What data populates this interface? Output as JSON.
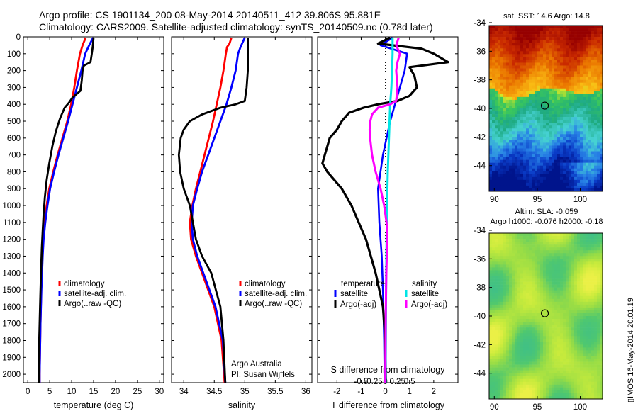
{
  "header": {
    "line1": "Argo profile: CS 1901134_200 08-May-2014 20140511_412 39.806S 95.881E",
    "line2": "Climatology: CARS2009. Satellite-adjusted climatology: synTS_20140509.nc (0.78d later)"
  },
  "side_stamp": "▯IMOS 16-May-2014 20:01:19",
  "colors": {
    "climatology": "#ff0000",
    "satellite": "#0000ff",
    "argo": "#000000",
    "sat_s": "#00e5e5",
    "argo_s": "#ff00ff"
  },
  "chart_data": [
    {
      "id": "temperature",
      "type": "line",
      "xlabel": "temperature (deg C)",
      "xlim": [
        -1,
        31
      ],
      "ylim": [
        2050,
        0
      ],
      "y_reversed": true,
      "xticks": [
        0,
        5,
        10,
        15,
        20,
        25,
        30
      ],
      "yticks": [
        0,
        100,
        200,
        300,
        400,
        500,
        600,
        700,
        800,
        900,
        1000,
        1100,
        1200,
        1300,
        1400,
        1500,
        1600,
        1700,
        1800,
        1900,
        2000
      ],
      "legend": [
        "climatology",
        "satellite-adj. clim.",
        "Argo(..raw -QC)"
      ],
      "series": [
        {
          "name": "climatology",
          "color": "#ff0000",
          "depth": [
            5,
            50,
            100,
            200,
            300,
            400,
            500,
            600,
            700,
            800,
            900,
            1000,
            1100,
            1200,
            1300,
            1500,
            1700,
            2000,
            2050
          ],
          "x": [
            13.2,
            12.5,
            11.9,
            11.2,
            10.6,
            9.9,
            9.0,
            7.9,
            6.8,
            5.8,
            4.9,
            4.3,
            3.8,
            3.5,
            3.3,
            3.05,
            2.9,
            2.7,
            2.7
          ]
        },
        {
          "name": "satellite-adj. clim.",
          "color": "#0000ff",
          "depth": [
            5,
            50,
            100,
            200,
            300,
            400,
            500,
            600,
            700,
            800,
            900,
            1000,
            1100,
            1200,
            1300,
            1500,
            1700,
            2000,
            2050
          ],
          "x": [
            14.9,
            14.0,
            13.1,
            12.2,
            11.2,
            10.2,
            9.2,
            8.1,
            7.0,
            6.0,
            5.1,
            4.5,
            4.0,
            3.6,
            3.4,
            3.1,
            2.9,
            2.7,
            2.7
          ]
        },
        {
          "name": "Argo(..raw -QC)",
          "color": "#000000",
          "depth": [
            5,
            60,
            100,
            150,
            170,
            200,
            260,
            320,
            360,
            390,
            420,
            480,
            560,
            650,
            750,
            850,
            950,
            1050,
            1150,
            1250,
            1400,
            1600,
            1800,
            2050
          ],
          "x": [
            15.0,
            14.8,
            14.6,
            14.3,
            12.8,
            12.5,
            12.3,
            12.0,
            10.2,
            9.4,
            8.4,
            7.4,
            6.4,
            5.6,
            4.9,
            4.3,
            3.9,
            3.6,
            3.4,
            3.2,
            3.0,
            2.8,
            2.6,
            2.5
          ]
        }
      ]
    },
    {
      "id": "salinity",
      "type": "line",
      "xlabel": "salinity",
      "xlim": [
        33.8,
        36.1
      ],
      "ylim": [
        2050,
        0
      ],
      "y_reversed": true,
      "xticks": [
        34,
        34.5,
        35,
        35.5,
        36
      ],
      "legend": [
        "climatology",
        "satellite-adj. clim.",
        "Argo(..raw -QC)"
      ],
      "annotation": [
        "Argo Australia",
        "PI: Susan Wijffels"
      ],
      "series": [
        {
          "name": "climatology",
          "color": "#ff0000",
          "depth": [
            5,
            40,
            60,
            100,
            200,
            300,
            400,
            500,
            600,
            700,
            800,
            900,
            1000,
            1100,
            1200,
            1300,
            1400,
            1600,
            1800,
            2050
          ],
          "x": [
            34.78,
            34.75,
            34.71,
            34.69,
            34.65,
            34.6,
            34.54,
            34.48,
            34.41,
            34.34,
            34.27,
            34.2,
            34.14,
            34.1,
            34.12,
            34.2,
            34.3,
            34.5,
            34.62,
            34.67
          ]
        },
        {
          "name": "satellite-adj. clim.",
          "color": "#0000ff",
          "depth": [
            5,
            60,
            80,
            100,
            200,
            300,
            400,
            500,
            600,
            700,
            800,
            900,
            1000,
            1100,
            1200,
            1300,
            1400,
            1600,
            1800,
            2050
          ],
          "x": [
            35.0,
            34.93,
            34.91,
            34.89,
            34.85,
            34.78,
            34.7,
            34.6,
            34.5,
            34.4,
            34.3,
            34.22,
            34.15,
            34.13,
            34.15,
            34.22,
            34.32,
            34.52,
            34.64,
            34.68
          ]
        },
        {
          "name": "Argo(..raw -QC)",
          "color": "#000000",
          "depth": [
            5,
            100,
            200,
            300,
            380,
            400,
            420,
            460,
            500,
            550,
            600,
            700,
            800,
            900,
            1000,
            1100,
            1200,
            1300,
            1400,
            1600,
            1800,
            2050
          ],
          "x": [
            35.05,
            35.05,
            35.05,
            35.03,
            35.0,
            34.85,
            34.6,
            34.3,
            34.1,
            34.0,
            33.95,
            33.92,
            33.94,
            34.0,
            34.1,
            34.15,
            34.2,
            34.3,
            34.45,
            34.6,
            34.65,
            34.68
          ]
        }
      ]
    },
    {
      "id": "differences",
      "type": "line",
      "xlabel": "T difference from climatology",
      "xlabel_top": "S difference from climatology",
      "xlim": [
        -2.8,
        3.0
      ],
      "ylim": [
        2050,
        0
      ],
      "y_reversed": true,
      "xticks": [
        -2,
        -1,
        0,
        1,
        2
      ],
      "xticks_s": [
        "-0.5",
        "-0.25",
        "0",
        "0.25",
        "0.5"
      ],
      "legend_headers": [
        "temperature",
        "salinity"
      ],
      "legend": [
        "satellite",
        "Argo(-adj)",
        "satellite",
        "Argo(-adj)"
      ],
      "series": [
        {
          "name": "temperature satellite",
          "color": "#0000ff",
          "depth": [
            5,
            50,
            100,
            200,
            300,
            400,
            500,
            700,
            900,
            1100,
            1300,
            1500,
            1800,
            2050
          ],
          "x": [
            0.3,
            -0.2,
            0.9,
            0.8,
            0.6,
            0.4,
            0.2,
            -0.1,
            -0.3,
            -0.25,
            -0.15,
            -0.1,
            -0.05,
            -0.03
          ]
        },
        {
          "name": "temperature Argo(-adj)",
          "color": "#000000",
          "depth": [
            5,
            40,
            70,
            100,
            150,
            180,
            230,
            300,
            350,
            380,
            400,
            420,
            450,
            500,
            550,
            600,
            650,
            700,
            750,
            800,
            900,
            1000,
            1100,
            1200,
            1300,
            1400,
            1500,
            1600,
            1800,
            2050
          ],
          "x": [
            0.2,
            -0.3,
            1.5,
            2.0,
            2.6,
            1.0,
            1.2,
            1.3,
            1.0,
            0.5,
            -0.3,
            -0.9,
            -1.5,
            -1.8,
            -2.0,
            -2.3,
            -2.4,
            -2.5,
            -2.6,
            -2.4,
            -1.8,
            -1.4,
            -1.1,
            -0.8,
            -0.6,
            -0.4,
            -0.25,
            -0.1,
            0,
            0.02
          ]
        },
        {
          "name": "salinity satellite",
          "color": "#00e5e5",
          "depth": [
            5,
            100,
            200,
            300,
            400,
            600,
            800,
            1000,
            1200,
            1500,
            1800,
            2050
          ],
          "x": [
            0.3,
            0.3,
            0.28,
            0.25,
            0.2,
            0.15,
            0.1,
            0.07,
            0.05,
            0.03,
            0.02,
            0.01
          ]
        },
        {
          "name": "salinity Argo(-adj)",
          "color": "#ff00ff",
          "depth": [
            5,
            50,
            100,
            150,
            200,
            300,
            380,
            400,
            420,
            460,
            500,
            550,
            600,
            700,
            800,
            900,
            1000,
            1100,
            1200,
            1300,
            1400,
            1500,
            1600,
            1800,
            2050
          ],
          "x": [
            0.55,
            0.45,
            0.6,
            0.5,
            0.45,
            0.5,
            0.45,
            0.2,
            -0.3,
            -0.55,
            -0.62,
            -0.65,
            -0.63,
            -0.55,
            -0.4,
            -0.2,
            -0.05,
            0.05,
            0.08,
            0.06,
            0.04,
            0.03,
            0.02,
            0.01,
            0.0
          ]
        }
      ]
    },
    {
      "id": "sst_map",
      "type": "heatmap",
      "title": "sat. SST: 14.6 Argo: 14.8",
      "xlim": [
        89.4,
        102.6
      ],
      "ylim": [
        -45.8,
        -34.2
      ],
      "xticks": [
        90,
        95,
        100
      ],
      "yticks": [
        -34,
        -36,
        -38,
        -40,
        -42,
        -44
      ],
      "marker": {
        "lon": 95.881,
        "lat": -39.806
      }
    },
    {
      "id": "sla_map",
      "type": "heatmap",
      "title": "Altim. SLA: -0.059",
      "subtitle": "Argo h1000: -0.076 h2000: -0.18",
      "xlim": [
        89.4,
        102.6
      ],
      "ylim": [
        -45.8,
        -34.2
      ],
      "xticks": [
        90,
        95,
        100
      ],
      "yticks": [
        -34,
        -36,
        -38,
        -40,
        -42,
        -44
      ],
      "marker": {
        "lon": 95.881,
        "lat": -39.806
      }
    }
  ]
}
